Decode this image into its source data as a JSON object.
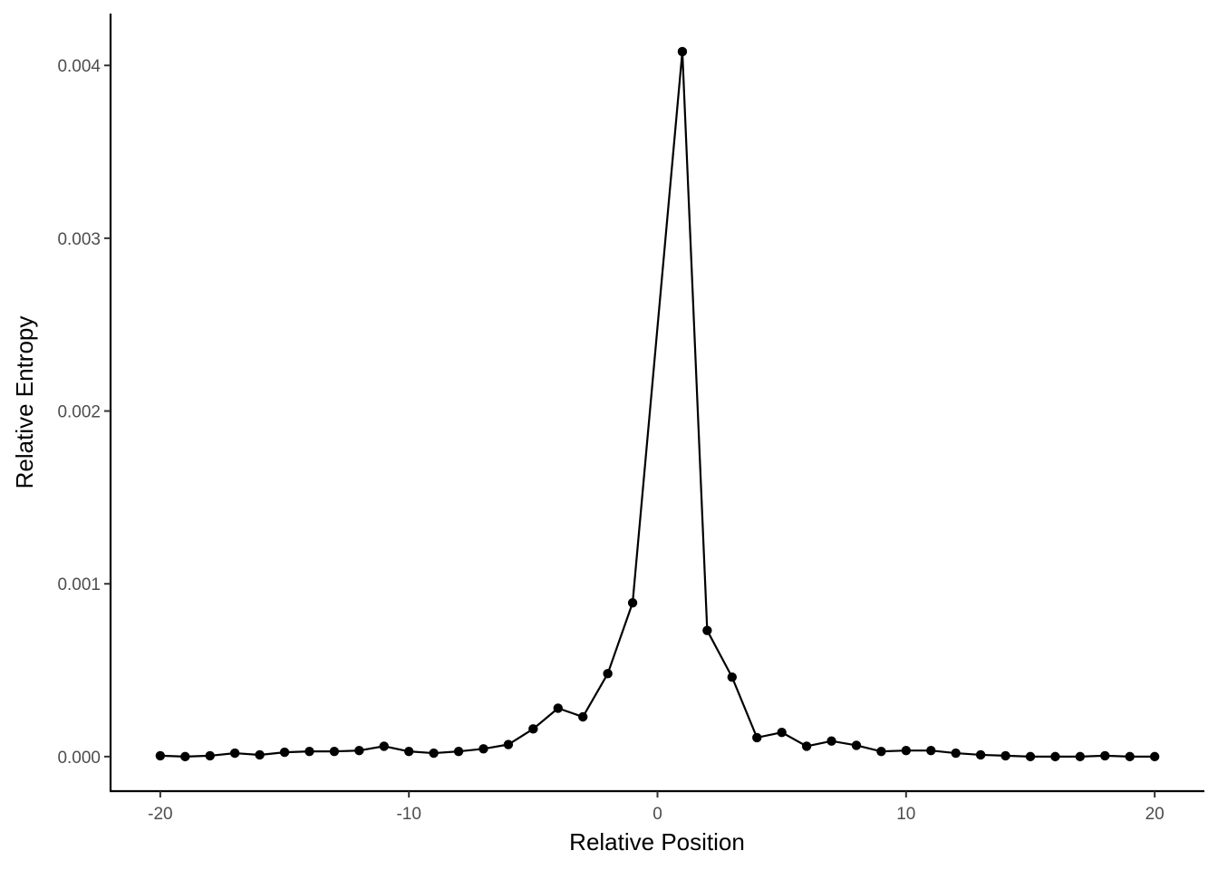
{
  "chart_data": {
    "type": "line",
    "title": "",
    "xlabel": "Relative Position",
    "ylabel": "Relative Entropy",
    "xlim": [
      -22,
      22
    ],
    "ylim": [
      -0.0002,
      0.0043
    ],
    "x_ticks": [
      -20,
      -10,
      0,
      10,
      20
    ],
    "x_tick_labels": [
      "-20",
      "-10",
      "0",
      "10",
      "20"
    ],
    "y_ticks": [
      0.0,
      0.001,
      0.002,
      0.003,
      0.004
    ],
    "y_tick_labels": [
      "0.000",
      "0.001",
      "0.002",
      "0.003",
      "0.004"
    ],
    "grid": false,
    "legend": "none",
    "color": "#000000",
    "x": [
      -20,
      -19,
      -18,
      -17,
      -16,
      -15,
      -14,
      -13,
      -12,
      -11,
      -10,
      -9,
      -8,
      -7,
      -6,
      -5,
      -4,
      -3,
      -2,
      -1,
      1,
      2,
      3,
      4,
      5,
      6,
      7,
      8,
      9,
      10,
      11,
      12,
      13,
      14,
      15,
      16,
      17,
      18,
      19,
      20
    ],
    "y": [
      5e-06,
      0.0,
      5e-06,
      2e-05,
      1e-05,
      2.5e-05,
      3e-05,
      3e-05,
      3.5e-05,
      6e-05,
      3e-05,
      2e-05,
      3e-05,
      4.5e-05,
      7e-05,
      0.00016,
      0.00028,
      0.00023,
      0.00048,
      0.00089,
      0.00408,
      0.00073,
      0.00046,
      0.00011,
      0.00014,
      6e-05,
      9e-05,
      6.5e-05,
      3e-05,
      3.5e-05,
      3.5e-05,
      2e-05,
      1e-05,
      5e-06,
      0.0,
      0.0,
      0.0,
      5e-06,
      0.0,
      0.0
    ]
  }
}
